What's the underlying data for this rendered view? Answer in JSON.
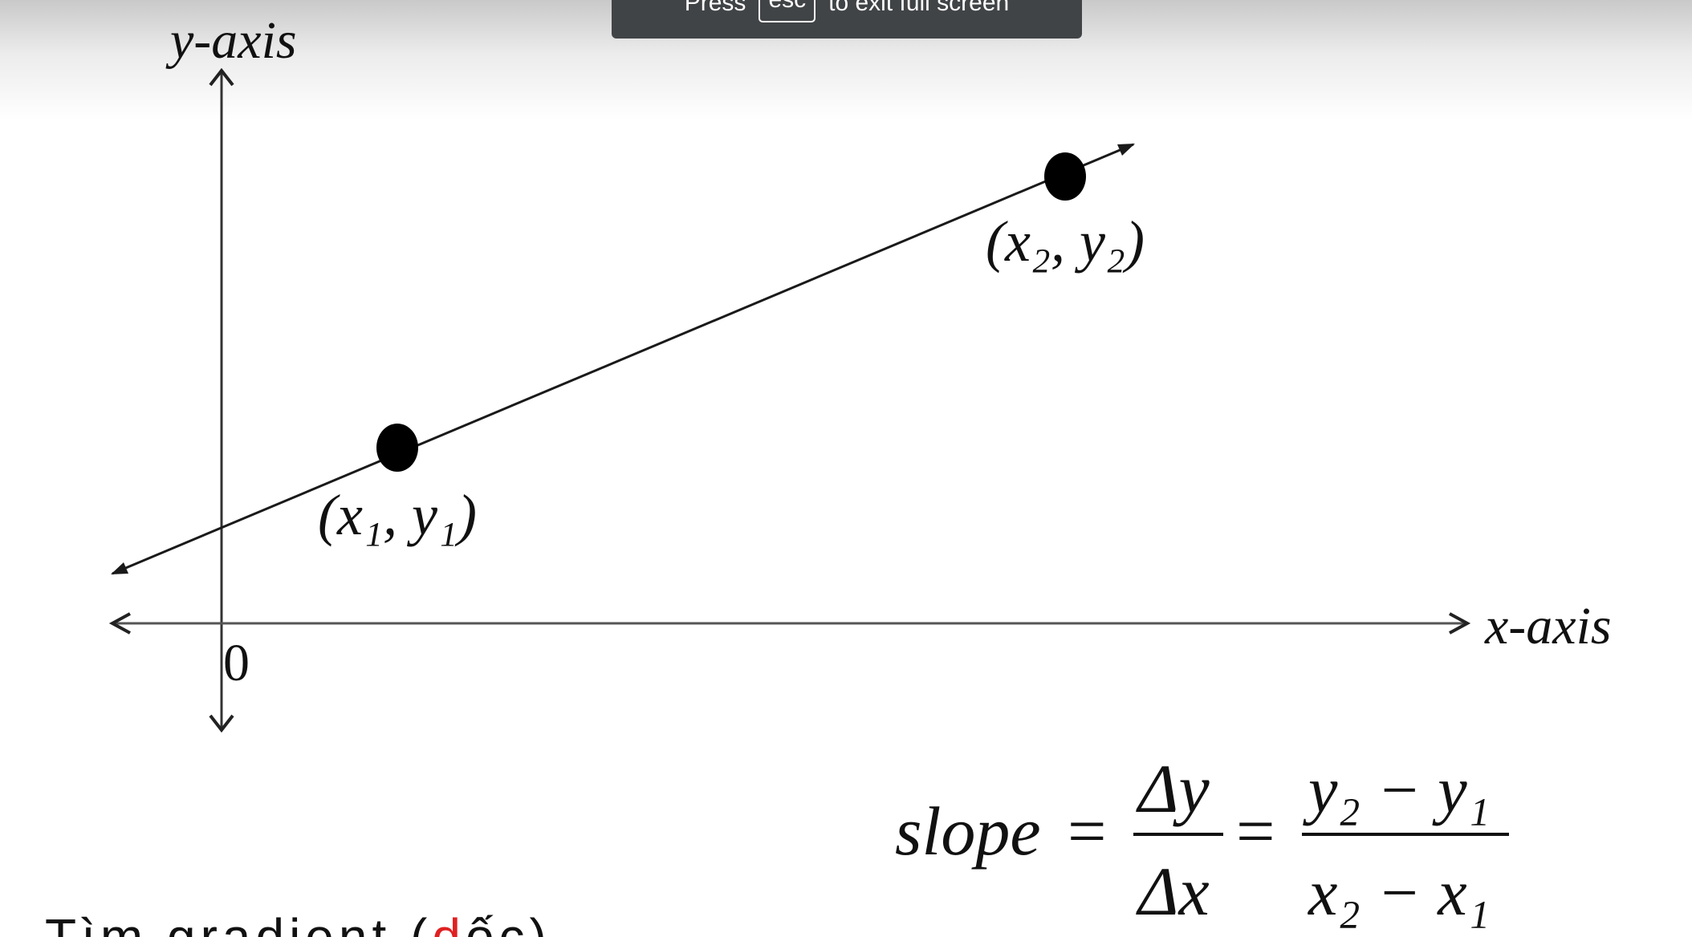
{
  "toast": {
    "press": "Press",
    "key": "esc",
    "suffix": "to exit full screen"
  },
  "figure": {
    "y_axis_label": "y-axis",
    "x_axis_label": "x-axis",
    "origin_label": "0",
    "point1_label": "(x₁, y₁)",
    "point2_label": "(x₂, y₂)"
  },
  "formula": {
    "lhs": "slope",
    "eq": "=",
    "num1": "Δy",
    "den1": "Δx",
    "num2": "y₂ − y₁",
    "den2": "x₂ − x₁"
  },
  "bottom_text": {
    "part1": "Tìm gradient (",
    "part2": "d",
    "part3": "ốc)"
  },
  "colors": {
    "toast_bg": "#414447",
    "line": "#1a1a1a",
    "accent_red": "#e02020"
  }
}
